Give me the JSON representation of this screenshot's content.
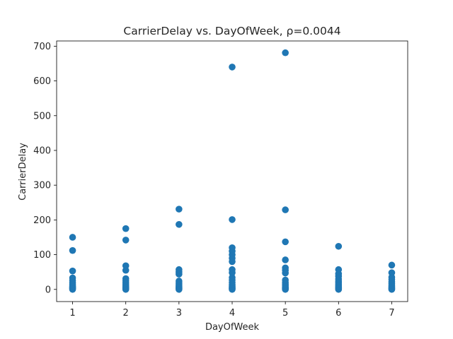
{
  "chart_data": {
    "type": "scatter",
    "title": "CarrierDelay vs. DayOfWeek, ρ=0.0044",
    "xlabel": "DayOfWeek",
    "ylabel": "CarrierDelay",
    "xlim": [
      0.7,
      7.3
    ],
    "ylim": [
      -35,
      715
    ],
    "xticks": [
      "1",
      "2",
      "3",
      "4",
      "5",
      "6",
      "7"
    ],
    "yticks": [
      "0",
      "100",
      "200",
      "300",
      "400",
      "500",
      "600",
      "700"
    ],
    "marker_color": "#1f77b4",
    "grid": false,
    "points": [
      [
        1,
        0
      ],
      [
        1,
        2
      ],
      [
        1,
        4
      ],
      [
        1,
        6
      ],
      [
        1,
        8
      ],
      [
        1,
        11
      ],
      [
        1,
        15
      ],
      [
        1,
        20
      ],
      [
        1,
        26
      ],
      [
        1,
        33
      ],
      [
        1,
        53
      ],
      [
        1,
        112
      ],
      [
        1,
        150
      ],
      [
        2,
        0
      ],
      [
        2,
        2
      ],
      [
        2,
        4
      ],
      [
        2,
        7
      ],
      [
        2,
        10
      ],
      [
        2,
        14
      ],
      [
        2,
        19
      ],
      [
        2,
        25
      ],
      [
        2,
        31
      ],
      [
        2,
        55
      ],
      [
        2,
        68
      ],
      [
        2,
        142
      ],
      [
        2,
        175
      ],
      [
        3,
        0
      ],
      [
        3,
        2
      ],
      [
        3,
        4
      ],
      [
        3,
        6
      ],
      [
        3,
        9
      ],
      [
        3,
        13
      ],
      [
        3,
        18
      ],
      [
        3,
        24
      ],
      [
        3,
        44
      ],
      [
        3,
        50
      ],
      [
        3,
        57
      ],
      [
        3,
        187
      ],
      [
        3,
        231
      ],
      [
        4,
        0
      ],
      [
        4,
        2
      ],
      [
        4,
        4
      ],
      [
        4,
        7
      ],
      [
        4,
        10
      ],
      [
        4,
        14
      ],
      [
        4,
        20
      ],
      [
        4,
        27
      ],
      [
        4,
        34
      ],
      [
        4,
        48
      ],
      [
        4,
        57
      ],
      [
        4,
        80
      ],
      [
        4,
        90
      ],
      [
        4,
        100
      ],
      [
        4,
        110
      ],
      [
        4,
        120
      ],
      [
        4,
        201
      ],
      [
        4,
        640
      ],
      [
        5,
        0
      ],
      [
        5,
        2
      ],
      [
        5,
        4
      ],
      [
        5,
        7
      ],
      [
        5,
        11
      ],
      [
        5,
        15
      ],
      [
        5,
        20
      ],
      [
        5,
        27
      ],
      [
        5,
        47
      ],
      [
        5,
        55
      ],
      [
        5,
        62
      ],
      [
        5,
        85
      ],
      [
        5,
        137
      ],
      [
        5,
        229
      ],
      [
        5,
        681
      ],
      [
        6,
        0
      ],
      [
        6,
        2
      ],
      [
        6,
        4
      ],
      [
        6,
        7
      ],
      [
        6,
        10
      ],
      [
        6,
        14
      ],
      [
        6,
        19
      ],
      [
        6,
        24
      ],
      [
        6,
        30
      ],
      [
        6,
        38
      ],
      [
        6,
        45
      ],
      [
        6,
        57
      ],
      [
        6,
        124
      ],
      [
        7,
        0
      ],
      [
        7,
        2
      ],
      [
        7,
        5
      ],
      [
        7,
        8
      ],
      [
        7,
        12
      ],
      [
        7,
        17
      ],
      [
        7,
        22
      ],
      [
        7,
        29
      ],
      [
        7,
        35
      ],
      [
        7,
        48
      ],
      [
        7,
        70
      ]
    ]
  }
}
